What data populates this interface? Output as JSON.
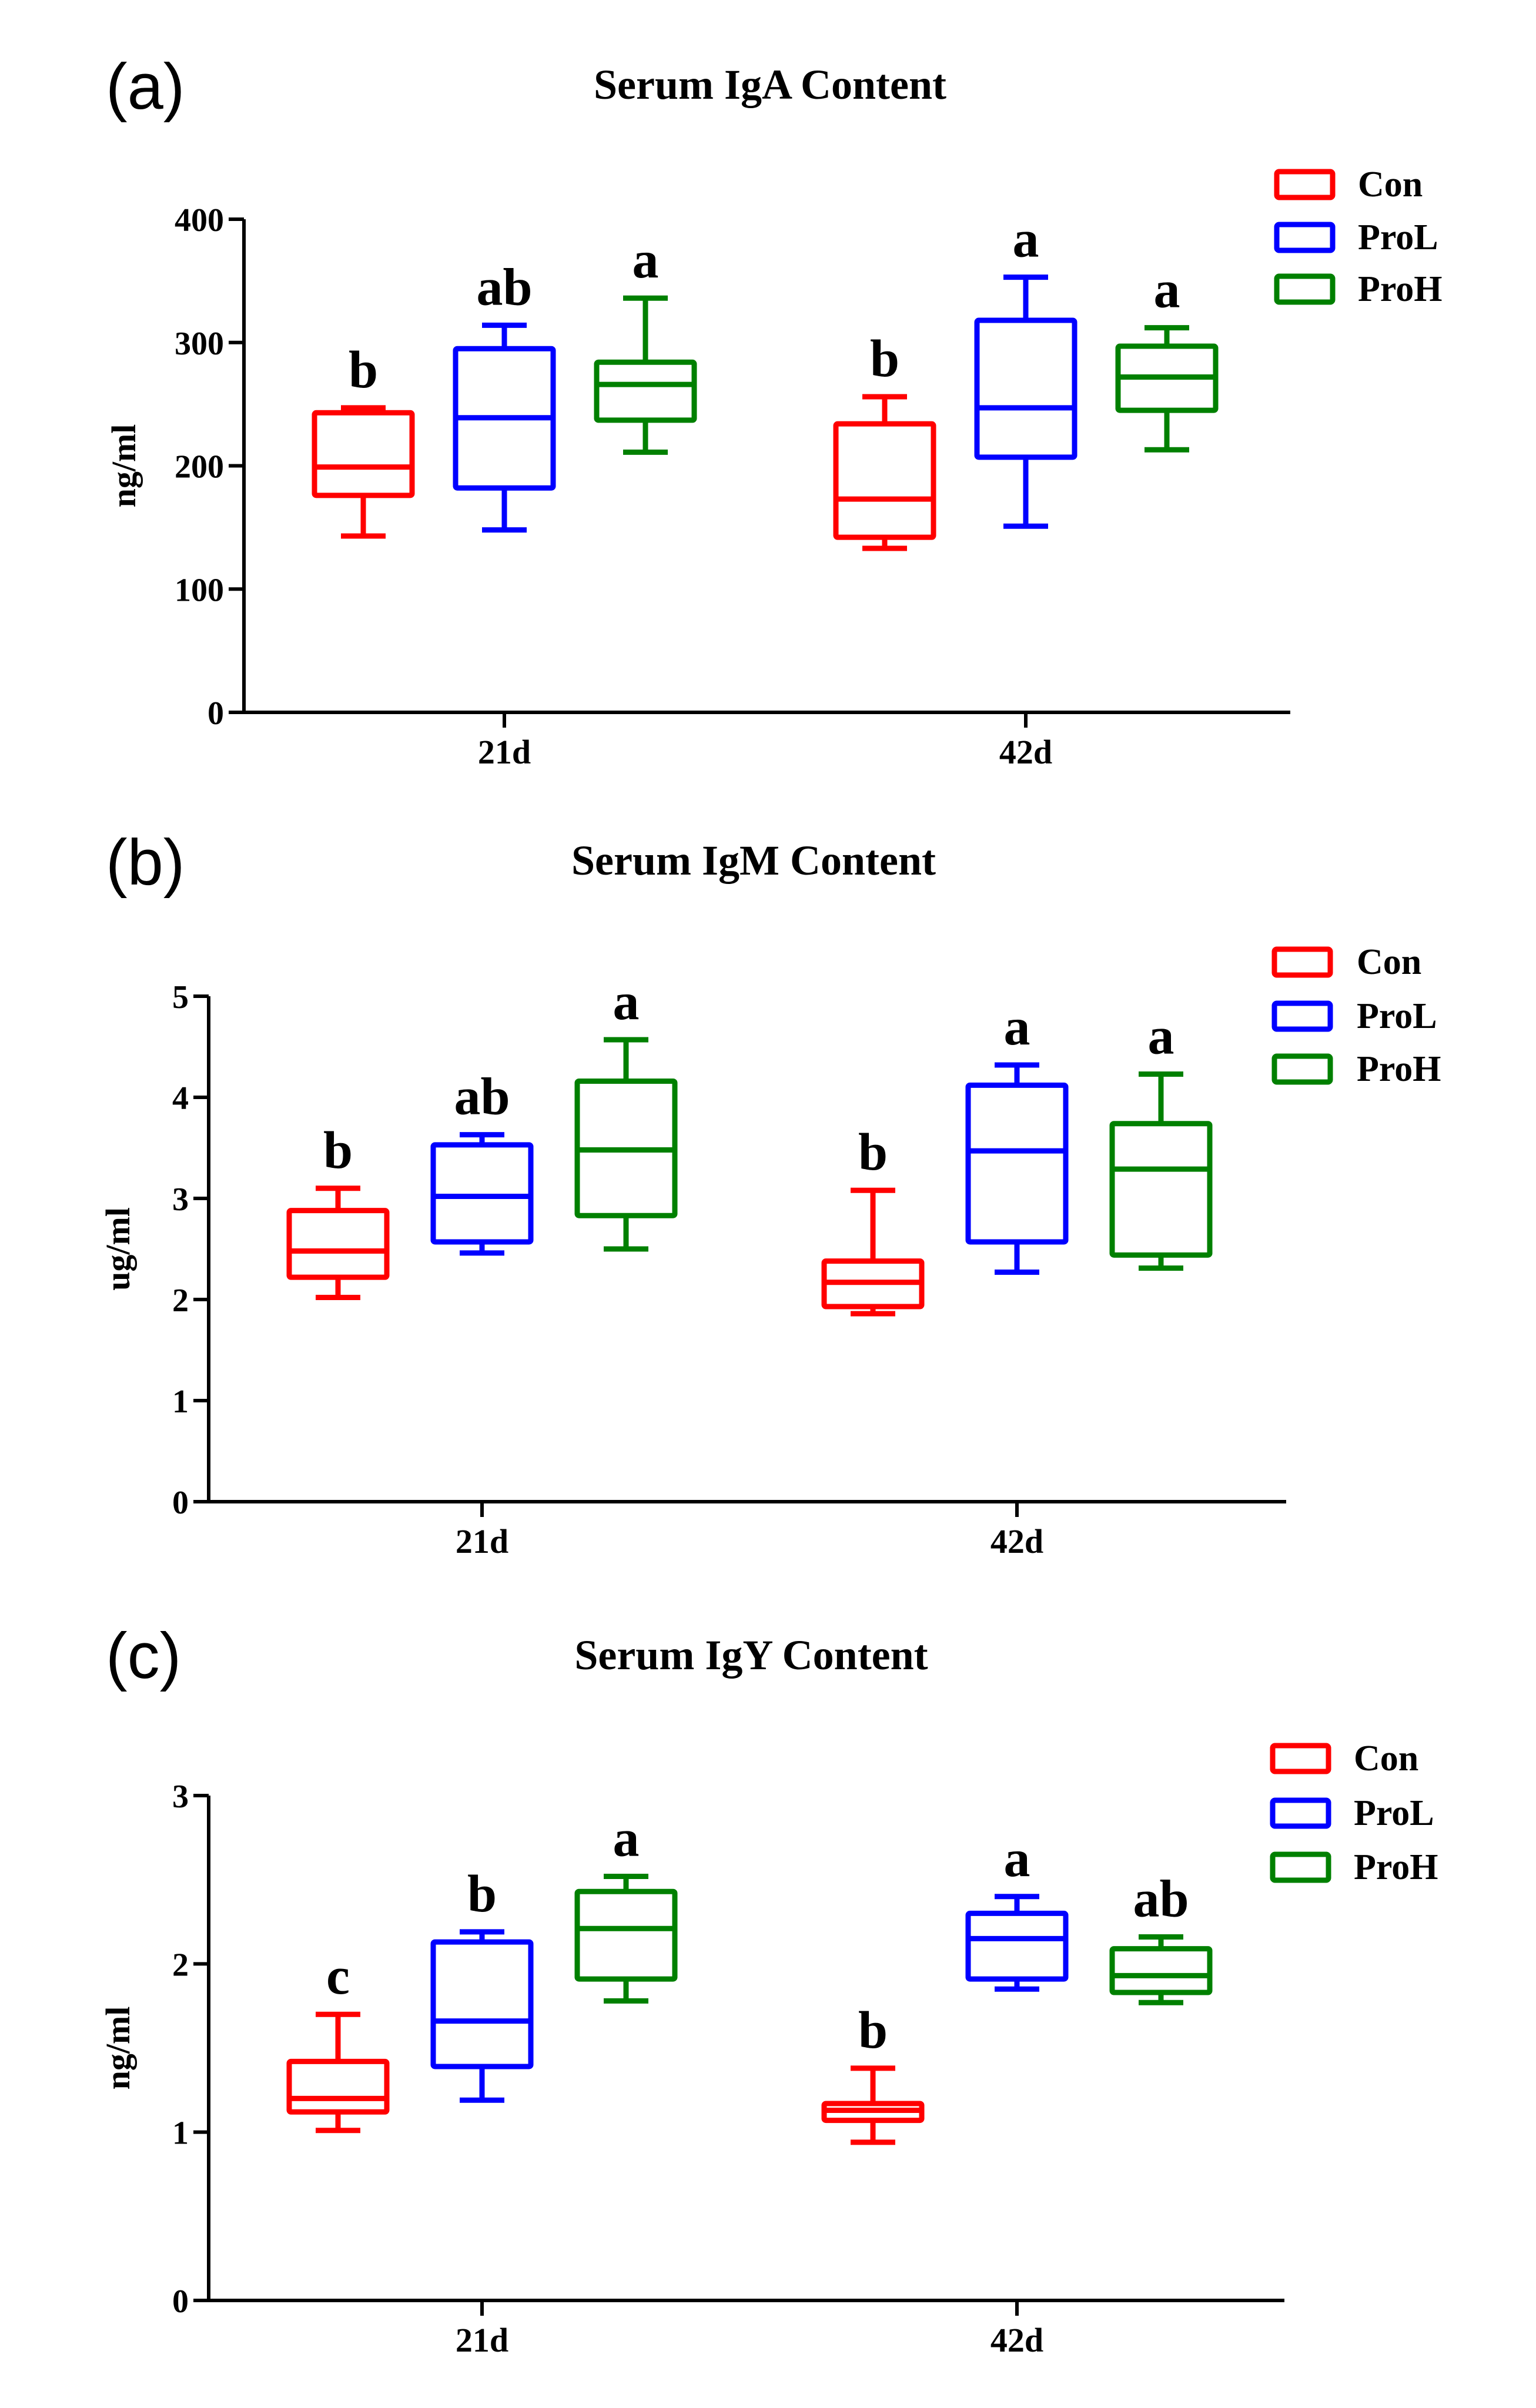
{
  "chart_data": [
    {
      "type": "box",
      "panel": "(a)",
      "title": "Serum IgA Content",
      "ylabel": "ng/ml",
      "xlabel": "",
      "ylim": [
        0,
        400
      ],
      "yticks": [
        0,
        100,
        200,
        300,
        400
      ],
      "categories": [
        "21d",
        "42d"
      ],
      "legend": [
        {
          "name": "Con",
          "color": "#ff0000"
        },
        {
          "name": "ProL",
          "color": "#0000ff"
        },
        {
          "name": "ProH",
          "color": "#008000"
        }
      ],
      "legend_position": "top-right",
      "series": [
        {
          "name": "Con",
          "color": "#ff0000",
          "boxes": [
            {
              "category": "21d",
              "min": 143,
              "q1": 176,
              "median": 199,
              "q3": 243,
              "max": 247,
              "sig": "b"
            },
            {
              "category": "42d",
              "min": 133,
              "q1": 142,
              "median": 173,
              "q3": 234,
              "max": 256,
              "sig": "b"
            }
          ]
        },
        {
          "name": "ProL",
          "color": "#0000ff",
          "boxes": [
            {
              "category": "21d",
              "min": 148,
              "q1": 182,
              "median": 239,
              "q3": 295,
              "max": 314,
              "sig": "ab"
            },
            {
              "category": "42d",
              "min": 151,
              "q1": 207,
              "median": 247,
              "q3": 318,
              "max": 353,
              "sig": "a"
            }
          ]
        },
        {
          "name": "ProH",
          "color": "#008000",
          "boxes": [
            {
              "category": "21d",
              "min": 211,
              "q1": 237,
              "median": 266,
              "q3": 284,
              "max": 336,
              "sig": "a"
            },
            {
              "category": "42d",
              "min": 213,
              "q1": 245,
              "median": 272,
              "q3": 297,
              "max": 312,
              "sig": "a"
            }
          ]
        }
      ]
    },
    {
      "type": "box",
      "panel": "(b)",
      "title": "Serum IgM Content",
      "ylabel": "ug/ml",
      "xlabel": "",
      "ylim": [
        0,
        5
      ],
      "yticks": [
        0,
        1,
        2,
        3,
        4,
        5
      ],
      "categories": [
        "21d",
        "42d"
      ],
      "legend": [
        {
          "name": "Con",
          "color": "#ff0000"
        },
        {
          "name": "ProL",
          "color": "#0000ff"
        },
        {
          "name": "ProH",
          "color": "#008000"
        }
      ],
      "legend_position": "top-right",
      "series": [
        {
          "name": "Con",
          "color": "#ff0000",
          "boxes": [
            {
              "category": "21d",
              "min": 2.02,
              "q1": 2.22,
              "median": 2.48,
              "q3": 2.88,
              "max": 3.1,
              "sig": "b"
            },
            {
              "category": "42d",
              "min": 1.86,
              "q1": 1.93,
              "median": 2.17,
              "q3": 2.38,
              "max": 3.08,
              "sig": "b"
            }
          ]
        },
        {
          "name": "ProL",
          "color": "#0000ff",
          "boxes": [
            {
              "category": "21d",
              "min": 2.46,
              "q1": 2.57,
              "median": 3.02,
              "q3": 3.53,
              "max": 3.63,
              "sig": "ab"
            },
            {
              "category": "42d",
              "min": 2.27,
              "q1": 2.57,
              "median": 3.47,
              "q3": 4.12,
              "max": 4.32,
              "sig": "a"
            }
          ]
        },
        {
          "name": "ProH",
          "color": "#008000",
          "boxes": [
            {
              "category": "21d",
              "min": 2.5,
              "q1": 2.83,
              "median": 3.48,
              "q3": 4.16,
              "max": 4.57,
              "sig": "a"
            },
            {
              "category": "42d",
              "min": 2.31,
              "q1": 2.44,
              "median": 3.29,
              "q3": 3.74,
              "max": 4.23,
              "sig": "a"
            }
          ]
        }
      ]
    },
    {
      "type": "box",
      "panel": "(c)",
      "title": "Serum IgY Content",
      "ylabel": "ng/ml",
      "xlabel": "",
      "ylim": [
        0,
        3
      ],
      "yticks": [
        0,
        1,
        2,
        3
      ],
      "categories": [
        "21d",
        "42d"
      ],
      "legend": [
        {
          "name": "Con",
          "color": "#ff0000"
        },
        {
          "name": "ProL",
          "color": "#0000ff"
        },
        {
          "name": "ProH",
          "color": "#008000"
        }
      ],
      "legend_position": "top-right",
      "series": [
        {
          "name": "Con",
          "color": "#ff0000",
          "boxes": [
            {
              "category": "21d",
              "min": 1.01,
              "q1": 1.12,
              "median": 1.2,
              "q3": 1.42,
              "max": 1.7,
              "sig": "c"
            },
            {
              "category": "42d",
              "min": 0.94,
              "q1": 1.07,
              "median": 1.13,
              "q3": 1.17,
              "max": 1.38,
              "sig": "b"
            }
          ]
        },
        {
          "name": "ProL",
          "color": "#0000ff",
          "boxes": [
            {
              "category": "21d",
              "min": 1.19,
              "q1": 1.39,
              "median": 1.66,
              "q3": 2.13,
              "max": 2.19,
              "sig": "b"
            },
            {
              "category": "42d",
              "min": 1.85,
              "q1": 1.91,
              "median": 2.15,
              "q3": 2.3,
              "max": 2.4,
              "sig": "a"
            }
          ]
        },
        {
          "name": "ProH",
          "color": "#008000",
          "boxes": [
            {
              "category": "21d",
              "min": 1.78,
              "q1": 1.91,
              "median": 2.21,
              "q3": 2.43,
              "max": 2.52,
              "sig": "a"
            },
            {
              "category": "42d",
              "min": 1.77,
              "q1": 1.83,
              "median": 1.93,
              "q3": 2.09,
              "max": 2.16,
              "sig": "ab"
            }
          ]
        }
      ]
    }
  ]
}
